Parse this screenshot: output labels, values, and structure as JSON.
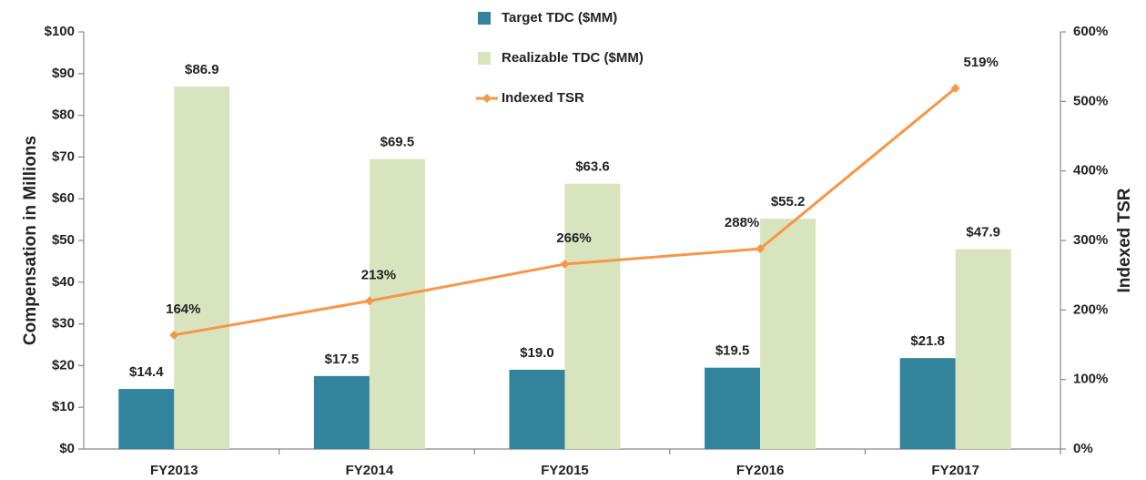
{
  "chart_data": {
    "type": "bar_line",
    "categories": [
      "FY2013",
      "FY2014",
      "FY2015",
      "FY2016",
      "FY2017"
    ],
    "series": [
      {
        "name": "Target TDC ($MM)",
        "color": "#31849b",
        "values": [
          14.4,
          17.5,
          19.0,
          19.5,
          21.8
        ],
        "value_labels": [
          "$14.4",
          "$17.5",
          "$19.0",
          "$19.5",
          "$21.8"
        ]
      },
      {
        "name": "Realizable TDC ($MM)",
        "color": "#d7e4bd",
        "values": [
          86.9,
          69.5,
          63.6,
          55.2,
          47.9
        ],
        "value_labels": [
          "$86.9",
          "$69.5",
          "$63.6",
          "$55.2",
          "$47.9"
        ]
      },
      {
        "name": "Indexed TSR",
        "color": "#f79646",
        "axis": "y2",
        "values": [
          164,
          213,
          266,
          288,
          519
        ],
        "value_labels": [
          "164%",
          "213%",
          "266%",
          "288%",
          "519%"
        ]
      }
    ],
    "y_label": "Compensation in Millions",
    "y2_label": "Indexed TSR",
    "ylim": [
      0,
      100
    ],
    "yticks": [
      {
        "value": 0,
        "label": "$0"
      },
      {
        "value": 10,
        "label": "$10"
      },
      {
        "value": 20,
        "label": "$20"
      },
      {
        "value": 30,
        "label": "$30"
      },
      {
        "value": 40,
        "label": "$40"
      },
      {
        "value": 50,
        "label": "$50"
      },
      {
        "value": 60,
        "label": "$60"
      },
      {
        "value": 70,
        "label": "$70"
      },
      {
        "value": 80,
        "label": "$80"
      },
      {
        "value": 90,
        "label": "$90"
      },
      {
        "value": 100,
        "label": "$100"
      }
    ],
    "y2lim": [
      0,
      600
    ],
    "y2ticks": [
      {
        "value": 0,
        "label": "0%"
      },
      {
        "value": 100,
        "label": "100%"
      },
      {
        "value": 200,
        "label": "200%"
      },
      {
        "value": 300,
        "label": "300%"
      },
      {
        "value": 400,
        "label": "400%"
      },
      {
        "value": 500,
        "label": "500%"
      },
      {
        "value": 600,
        "label": "600%"
      }
    ],
    "grid": false,
    "legend": "top"
  }
}
